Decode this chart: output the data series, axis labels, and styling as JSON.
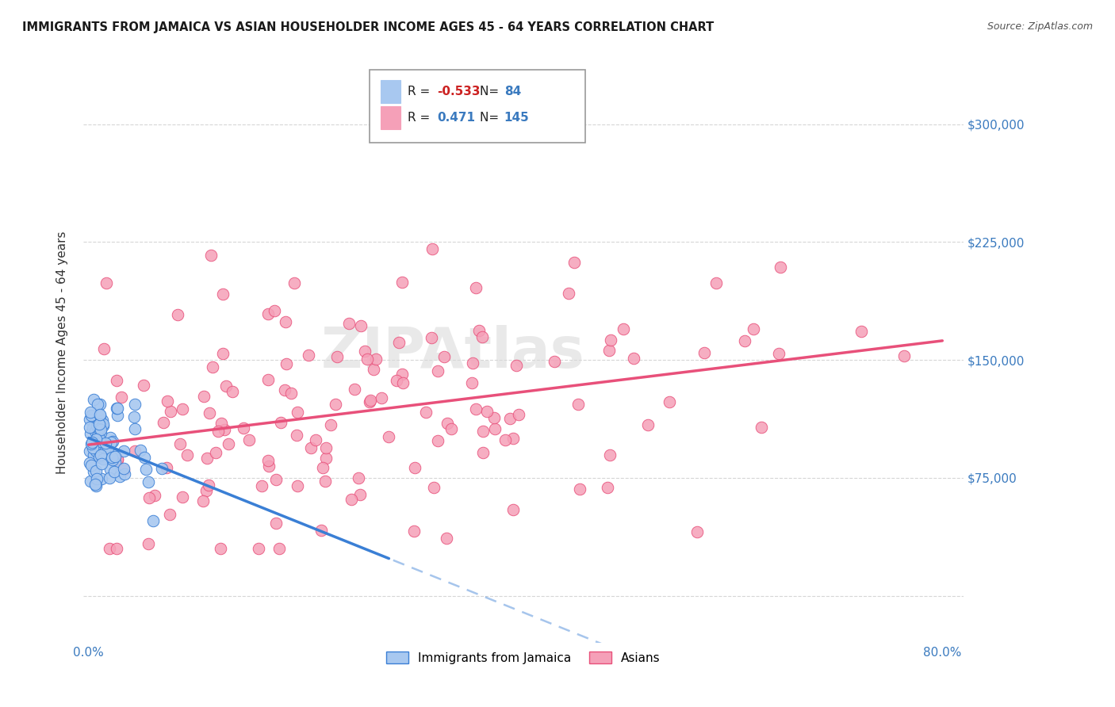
{
  "title": "IMMIGRANTS FROM JAMAICA VS ASIAN HOUSEHOLDER INCOME AGES 45 - 64 YEARS CORRELATION CHART",
  "source": "Source: ZipAtlas.com",
  "ylabel": "Householder Income Ages 45 - 64 years",
  "xlim": [
    -0.005,
    0.82
  ],
  "ylim": [
    -30000,
    340000
  ],
  "yticks": [
    0,
    75000,
    150000,
    225000,
    300000
  ],
  "xtick_vals": [
    0.0,
    0.1,
    0.2,
    0.3,
    0.4,
    0.5,
    0.6,
    0.7,
    0.8
  ],
  "xtick_labels": [
    "0.0%",
    "",
    "",
    "",
    "",
    "",
    "",
    "",
    "80.0%"
  ],
  "color_jamaica": "#a8c8f0",
  "color_asian": "#f5a0b8",
  "line_color_jamaica": "#3a7fd5",
  "line_color_asian": "#e8507a",
  "background_color": "#ffffff",
  "grid_color": "#cccccc",
  "tick_color": "#3a7abf",
  "title_color": "#1a1a1a",
  "source_color": "#555555",
  "ylabel_color": "#333333",
  "legend_r1": "-0.533",
  "legend_n1": "84",
  "legend_r2": "0.471",
  "legend_n2": "145",
  "r1_color": "#cc2222",
  "r2_color": "#3a7abf",
  "n_color": "#3a7abf"
}
